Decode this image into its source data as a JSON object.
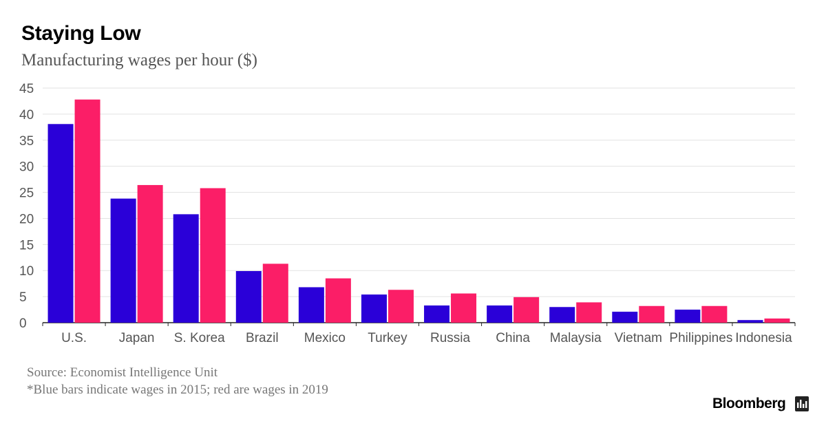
{
  "header": {
    "title": "Staying Low",
    "subtitle": "Manufacturing wages per hour ($)"
  },
  "footer": {
    "source": "Source: Economist Intelligence Unit",
    "note": "*Blue bars indicate wages in 2015; red are wages in 2019",
    "brand": "Bloomberg"
  },
  "colors": {
    "series_2015": "#2a00d8",
    "series_2019": "#fb1e67",
    "grid": "#e2e2e2",
    "axis": "#222222"
  },
  "chart_data": {
    "type": "bar",
    "categories": [
      "U.S.",
      "Japan",
      "S. Korea",
      "Brazil",
      "Mexico",
      "Turkey",
      "Russia",
      "China",
      "Malaysia",
      "Vietnam",
      "Philippines",
      "Indonesia"
    ],
    "series": [
      {
        "values": [
          38.1,
          23.8,
          20.8,
          9.9,
          6.8,
          5.4,
          3.3,
          3.3,
          3.0,
          2.1,
          2.5,
          0.5
        ]
      },
      {
        "values": [
          42.8,
          26.4,
          25.8,
          11.3,
          8.5,
          6.3,
          5.6,
          4.9,
          3.9,
          3.2,
          3.2,
          0.8
        ]
      }
    ],
    "ylim": [
      0,
      45
    ],
    "yticks": [
      0,
      5,
      10,
      15,
      20,
      25,
      30,
      35,
      40,
      45
    ],
    "grid": true,
    "legend": "none"
  }
}
